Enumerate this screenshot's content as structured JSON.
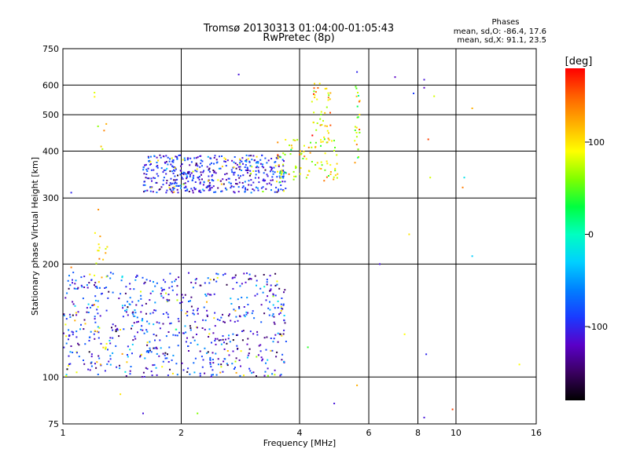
{
  "chart_data": {
    "type": "scatter",
    "title": "Tromsø 20130313 01:04:00-01:05:43",
    "subtitle": "RwPretec (8p)",
    "xlabel": "Frequency [MHz]",
    "ylabel": "Stationary phase Virtual Height [km]",
    "x_scale": "log",
    "y_scale": "log",
    "xlim": [
      1,
      16
    ],
    "ylim": [
      75,
      750
    ],
    "x_ticks": [
      1,
      2,
      4,
      6,
      8,
      10,
      16
    ],
    "y_ticks": [
      75,
      100,
      200,
      300,
      400,
      500,
      600,
      750
    ],
    "grid": true,
    "phase_info": {
      "heading": "Phases",
      "line_o": "mean, sd,O: -86.4, 17.6",
      "line_x": "mean, sd,X:  91.1, 23.5"
    },
    "colorbar": {
      "label": "[deg]",
      "range": [
        -180,
        180
      ],
      "ticks": [
        100,
        0,
        -100
      ],
      "colors": [
        "#000000",
        "#3a0060",
        "#5a00c8",
        "#1a3aff",
        "#0080ff",
        "#00d0ff",
        "#00ffc0",
        "#00ff40",
        "#80ff00",
        "#ffff00",
        "#ffb000",
        "#ff6000",
        "#ff0000"
      ]
    },
    "clusters": [
      {
        "name": "",
        "fmin": 1.0,
        "fmax": 3.7,
        "hmin": 100,
        "hmax": 190,
        "n": 700,
        "phase_mean": -95,
        "phase_sd": 35
      },
      {
        "name": "",
        "fmin": 1.6,
        "fmax": 3.7,
        "hmin": 310,
        "hmax": 390,
        "n": 500,
        "phase_mean": -100,
        "phase_sd": 25
      },
      {
        "name": "",
        "fmin": 3.5,
        "fmax": 5.0,
        "hmin": 330,
        "hmax": 430,
        "n": 90,
        "phase_mean": 90,
        "phase_sd": 30
      },
      {
        "name": "",
        "fmin": 4.3,
        "fmax": 4.8,
        "hmin": 420,
        "hmax": 610,
        "n": 45,
        "phase_mean": 100,
        "phase_sd": 30
      },
      {
        "name": "",
        "fmin": 1.2,
        "fmax": 1.3,
        "hmin": 100,
        "hmax": 590,
        "n": 35,
        "phase_mean": 110,
        "phase_sd": 20
      },
      {
        "name": "",
        "fmin": 5.5,
        "fmax": 5.7,
        "hmin": 360,
        "hmax": 600,
        "n": 25,
        "phase_mean": 90,
        "phase_sd": 60
      }
    ],
    "sparse_points": [
      [
        2.8,
        640,
        -110
      ],
      [
        5.6,
        650,
        -100
      ],
      [
        7.0,
        630,
        -120
      ],
      [
        8.3,
        620,
        -110
      ],
      [
        8.3,
        590,
        -120
      ],
      [
        7.8,
        570,
        -90
      ],
      [
        8.8,
        560,
        80
      ],
      [
        11.0,
        520,
        120
      ],
      [
        10.5,
        340,
        -20
      ],
      [
        8.5,
        430,
        160
      ],
      [
        8.6,
        340,
        80
      ],
      [
        10.4,
        320,
        140
      ],
      [
        11.0,
        210,
        -30
      ],
      [
        7.6,
        240,
        100
      ],
      [
        6.4,
        200,
        -110
      ],
      [
        5.6,
        95,
        120
      ],
      [
        8.3,
        78,
        -110
      ],
      [
        9.8,
        82,
        160
      ],
      [
        14.5,
        108,
        90
      ],
      [
        8.4,
        115,
        -100
      ],
      [
        7.4,
        130,
        90
      ],
      [
        4.2,
        120,
        40
      ],
      [
        4.9,
        85,
        -110
      ],
      [
        1.4,
        90,
        100
      ],
      [
        1.6,
        80,
        -110
      ],
      [
        2.2,
        80,
        60
      ],
      [
        1.05,
        196,
        140
      ],
      [
        1.05,
        310,
        -100
      ]
    ]
  }
}
